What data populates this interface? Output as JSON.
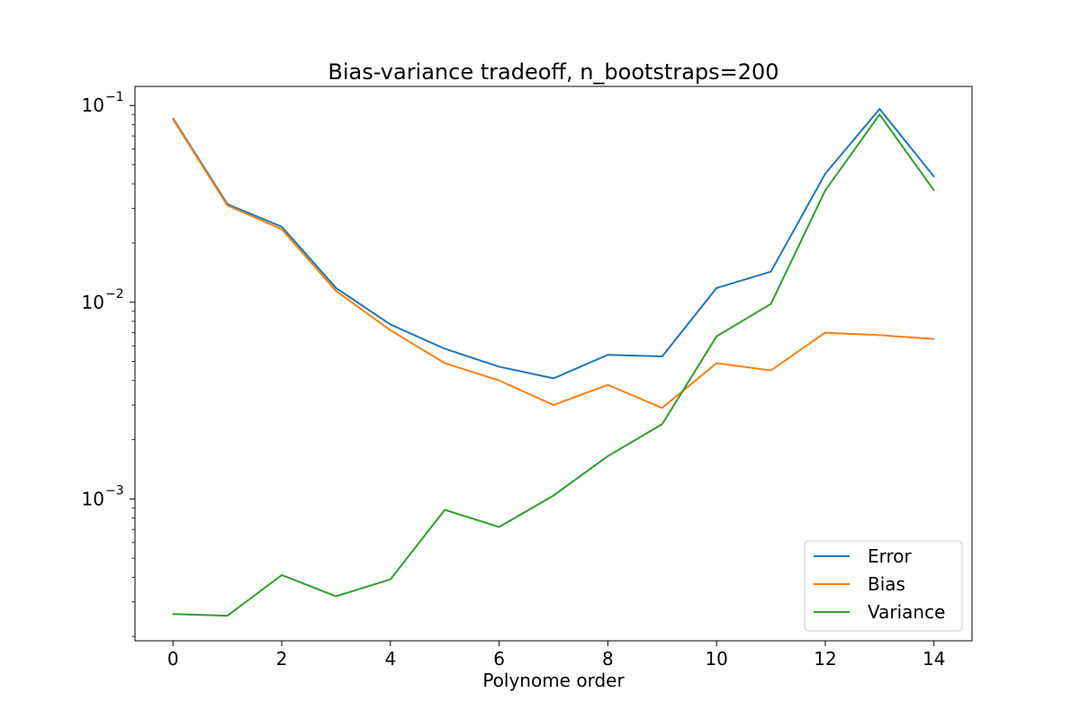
{
  "chart_data": {
    "type": "line",
    "title": "Bias-variance tradeoff, n_bootstraps=200",
    "xlabel": "Polynome order",
    "ylabel": "",
    "yscale": "log",
    "xlim": [
      -0.7,
      14.7
    ],
    "ylim": [
      0.00019,
      0.125
    ],
    "x": [
      0,
      1,
      2,
      3,
      4,
      5,
      6,
      7,
      8,
      9,
      10,
      11,
      12,
      13,
      14
    ],
    "xticks": [
      0,
      2,
      4,
      6,
      8,
      10,
      12,
      14
    ],
    "yticks": [
      {
        "value": 0.001,
        "base": "10",
        "exp": "−3"
      },
      {
        "value": 0.01,
        "base": "10",
        "exp": "−2"
      },
      {
        "value": 0.1,
        "base": "10",
        "exp": "−1"
      }
    ],
    "grid": false,
    "legend_position": "lower-right",
    "series": [
      {
        "name": "Error",
        "color": "#1f77b4",
        "values": [
          0.086,
          0.0315,
          0.0242,
          0.0118,
          0.0077,
          0.0058,
          0.0047,
          0.0041,
          0.0054,
          0.0053,
          0.0118,
          0.0143,
          0.045,
          0.096,
          0.0435
        ]
      },
      {
        "name": "Bias",
        "color": "#ff7f0e",
        "values": [
          0.085,
          0.031,
          0.0235,
          0.0114,
          0.0072,
          0.0049,
          0.004,
          0.003,
          0.0038,
          0.0029,
          0.0049,
          0.0045,
          0.007,
          0.0068,
          0.0065
        ]
      },
      {
        "name": "Variance",
        "color": "#2ca02c",
        "values": [
          0.00026,
          0.000255,
          0.00041,
          0.00032,
          0.00039,
          0.00088,
          0.00072,
          0.00104,
          0.00165,
          0.0024,
          0.0067,
          0.0098,
          0.037,
          0.09,
          0.037
        ]
      }
    ]
  }
}
